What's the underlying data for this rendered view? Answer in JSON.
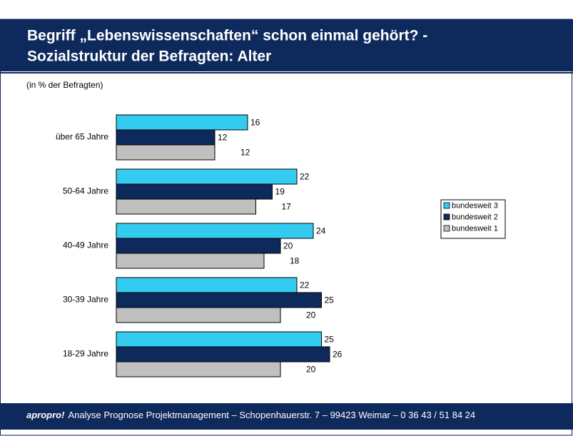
{
  "header": {
    "title_lines": [
      "Begriff „Lebenswissenschaften“ schon einmal gehört? -",
      "Sozialstruktur der Befragten: Alter"
    ]
  },
  "chart_data": {
    "type": "bar",
    "orientation": "horizontal",
    "subtitle": "(in % der Befragten)",
    "categories": [
      "über 65 Jahre",
      "50-64 Jahre",
      "40-49 Jahre",
      "30-39 Jahre",
      "18-29 Jahre"
    ],
    "series": [
      {
        "name": "bundesweit 3",
        "color": "#33ccf0",
        "values": [
          16,
          22,
          24,
          22,
          25
        ]
      },
      {
        "name": "bundesweit 2",
        "color": "#0e2a5c",
        "values": [
          12,
          19,
          20,
          25,
          26
        ]
      },
      {
        "name": "bundesweit 1",
        "color": "#c0c0c0",
        "values": [
          12,
          17,
          18,
          20,
          20
        ]
      }
    ],
    "xlim": [
      0,
      38
    ],
    "legend": "right"
  },
  "footer": {
    "brand": "apropro!",
    "text": "Analyse Prognose Projektmanagement – Schopenhauerstr. 7 – 99423 Weimar – 0 36 43 / 51 84 24"
  }
}
